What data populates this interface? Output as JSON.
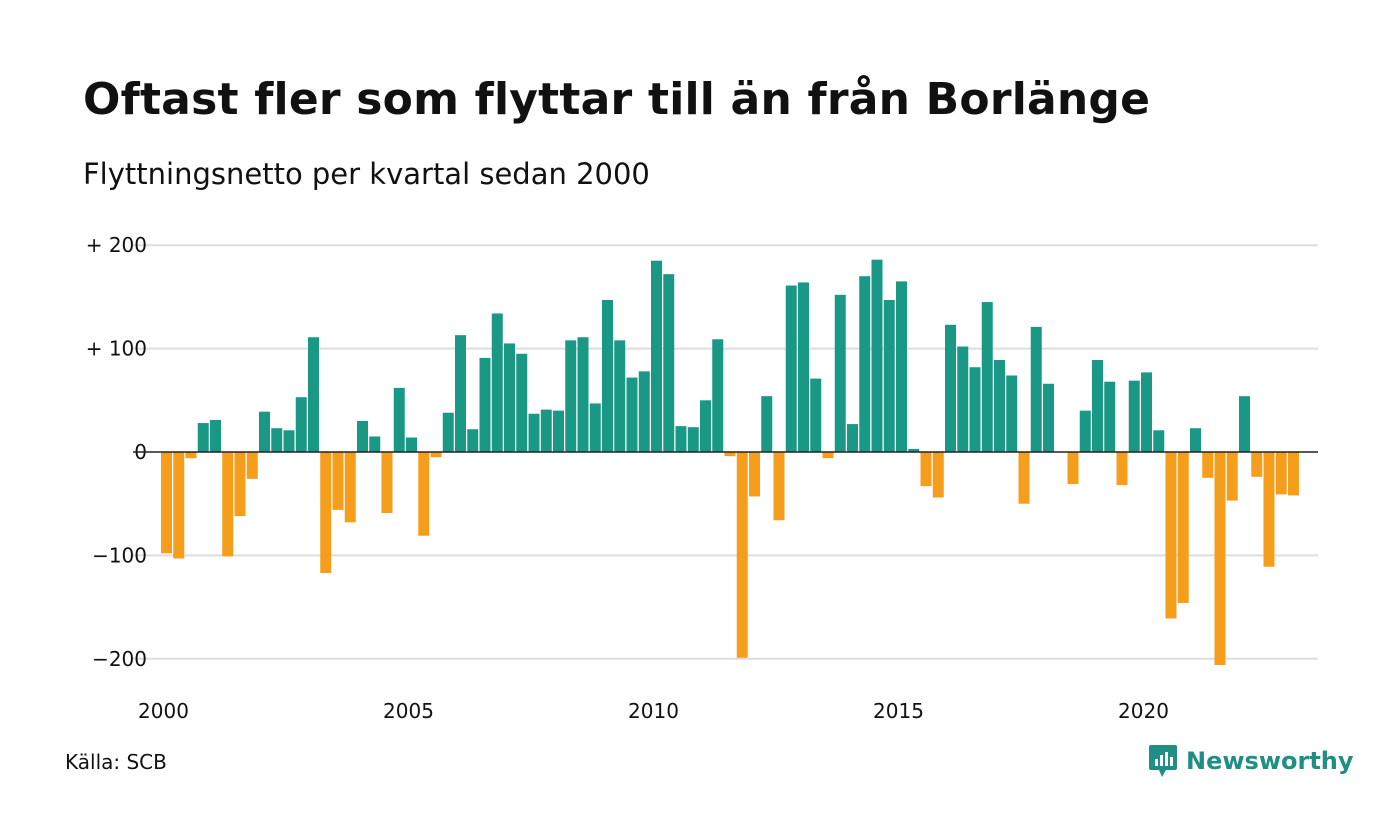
{
  "header": {
    "title": "Oftast fler som flyttar till än från Borlänge",
    "subtitle": "Flyttningsnetto per kvartal sedan 2000"
  },
  "footer": {
    "source": "Källa: SCB",
    "brand": "Newsworthy",
    "brand_icon": "bar-chart-speech-bubble-icon"
  },
  "colors": {
    "positive": "#1a9886",
    "negative": "#f59e1c",
    "grid": "#dddddd",
    "zero_line": "#222222",
    "brand": "#1f8f85"
  },
  "chart_data": {
    "type": "bar",
    "start_period": "2000 Q1",
    "interval": "quarter",
    "values": [
      -98,
      -103,
      -6,
      28,
      31,
      -101,
      -62,
      -26,
      39,
      23,
      21,
      53,
      111,
      -117,
      -56,
      -68,
      30,
      15,
      -59,
      62,
      14,
      -81,
      -5,
      38,
      113,
      22,
      91,
      134,
      105,
      95,
      37,
      41,
      40,
      108,
      111,
      47,
      147,
      108,
      72,
      78,
      185,
      172,
      25,
      24,
      50,
      109,
      -4,
      -199,
      -43,
      54,
      -66,
      161,
      164,
      71,
      -6,
      152,
      27,
      170,
      186,
      147,
      165,
      3,
      -33,
      -44,
      123,
      102,
      82,
      145,
      89,
      74,
      -50,
      121,
      66,
      0,
      -31,
      40,
      89,
      68,
      -32,
      69,
      77,
      21,
      -161,
      -146,
      23,
      -25,
      -206,
      -47,
      54,
      -24,
      -111,
      -41,
      -42
    ],
    "yticks": [
      200,
      100,
      0,
      -100,
      -200
    ],
    "ytick_labels": [
      "+ 200",
      "+ 100",
      "0",
      "−100",
      "−200"
    ],
    "xticks": [
      "2000",
      "2005",
      "2010",
      "2015",
      "2020"
    ],
    "ylim": [
      -210,
      205
    ],
    "grid": true,
    "legend": "none"
  }
}
